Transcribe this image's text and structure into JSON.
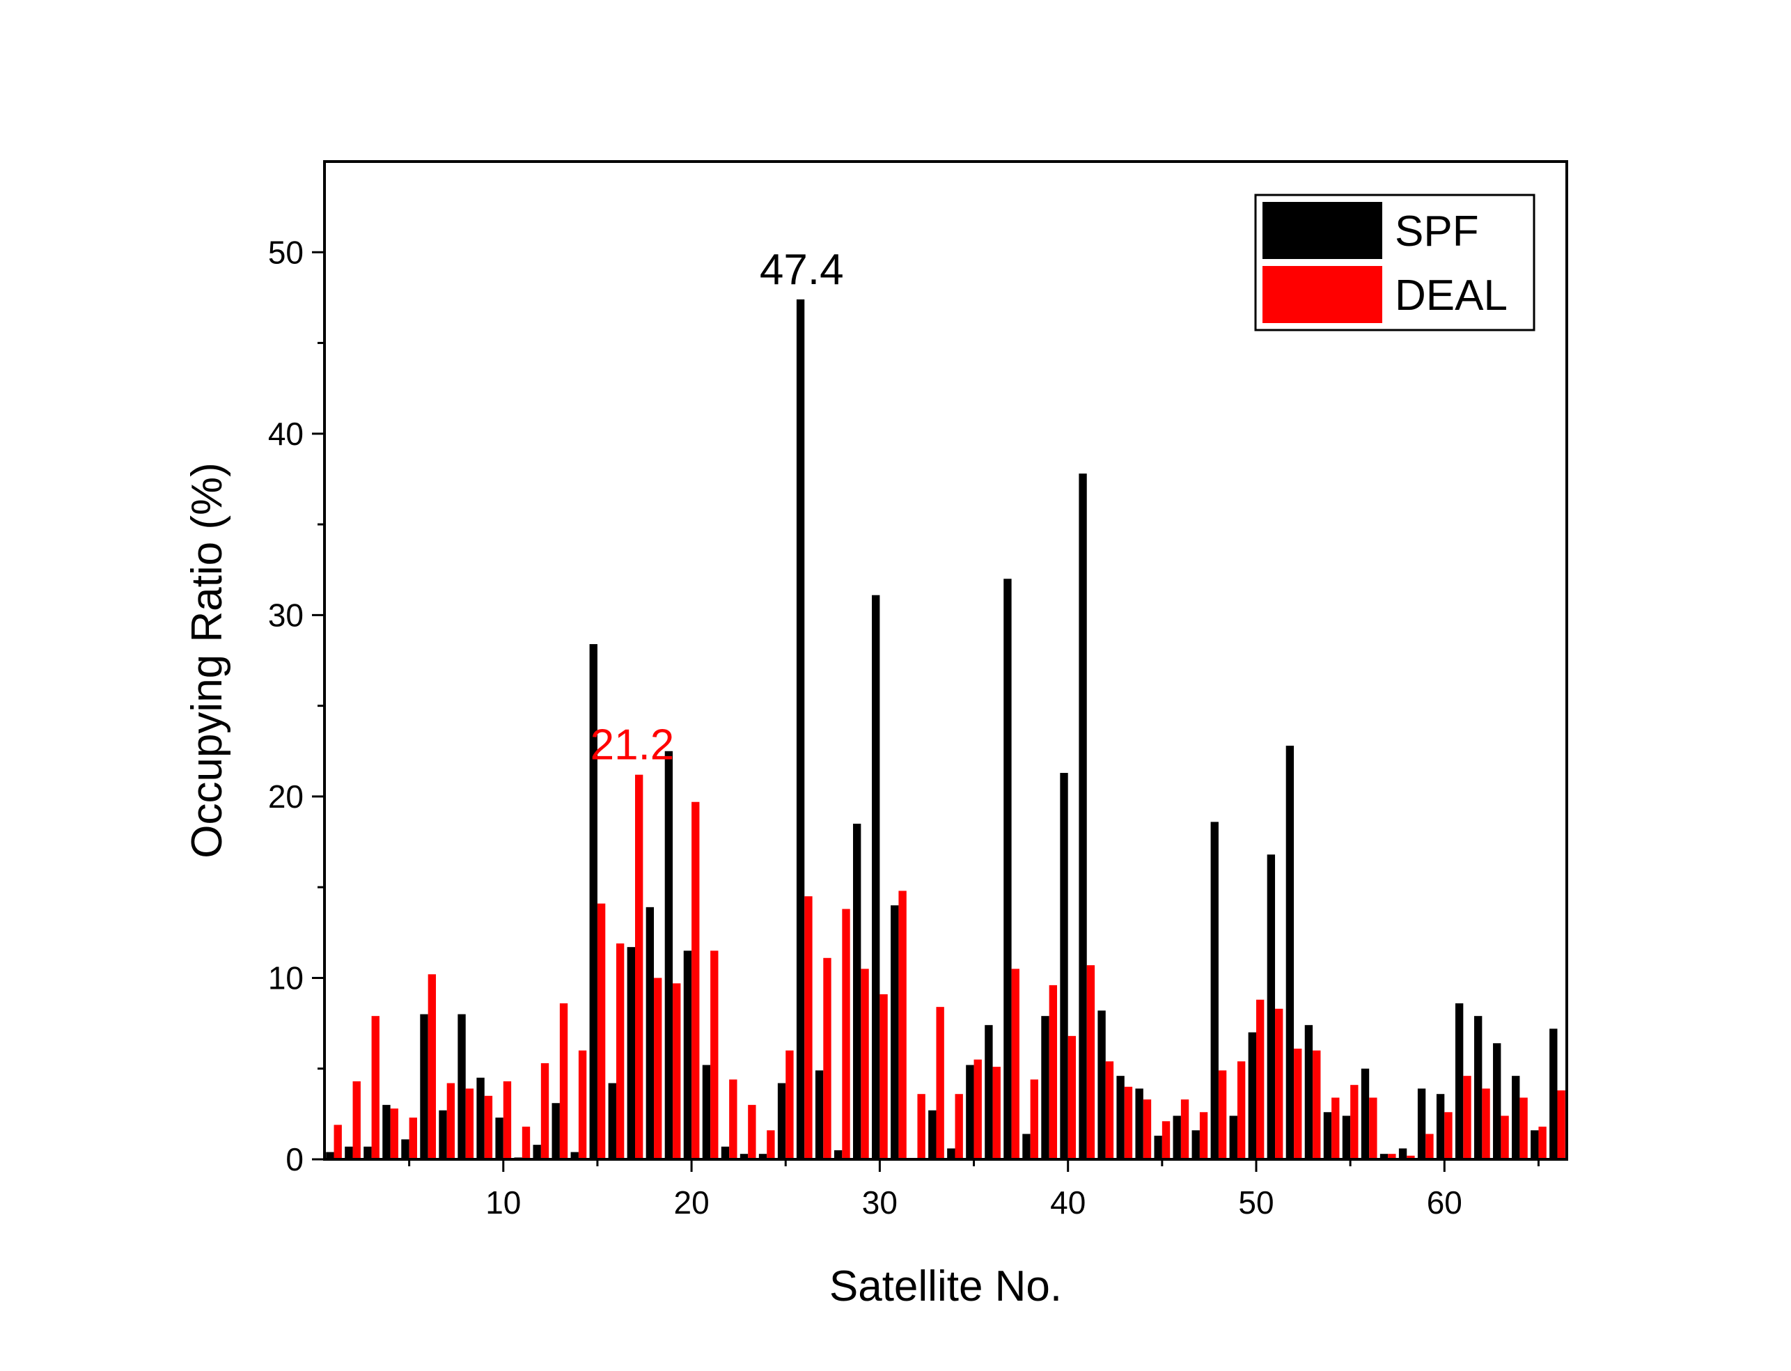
{
  "chart_data": {
    "type": "bar",
    "xlabel": "Satellite No.",
    "ylabel": "Occupying Ratio (%)",
    "xlim": [
      0.5,
      66.5
    ],
    "ylim": [
      0,
      55
    ],
    "x_ticks": [
      10,
      20,
      30,
      40,
      50,
      60
    ],
    "y_ticks": [
      0,
      10,
      20,
      30,
      40,
      50
    ],
    "legend_position": "top-right",
    "grid": false,
    "x": [
      1,
      2,
      3,
      4,
      5,
      6,
      7,
      8,
      9,
      10,
      11,
      12,
      13,
      14,
      15,
      16,
      17,
      18,
      19,
      20,
      21,
      22,
      23,
      24,
      25,
      26,
      27,
      28,
      29,
      30,
      31,
      32,
      33,
      34,
      35,
      36,
      37,
      38,
      39,
      40,
      41,
      42,
      43,
      44,
      45,
      46,
      47,
      48,
      49,
      50,
      51,
      52,
      53,
      54,
      55,
      56,
      57,
      58,
      59,
      60,
      61,
      62,
      63,
      64,
      65,
      66
    ],
    "series": [
      {
        "name": "SPF",
        "color": "#000000",
        "values": [
          0.4,
          0.7,
          0.7,
          3.0,
          1.1,
          8.0,
          2.7,
          8.0,
          4.5,
          2.3,
          0.1,
          0.8,
          3.1,
          0.4,
          28.4,
          4.2,
          11.7,
          13.9,
          22.5,
          11.5,
          5.2,
          0.7,
          0.3,
          0.3,
          4.2,
          47.4,
          4.9,
          0.5,
          18.5,
          31.1,
          14.0,
          0.0,
          2.7,
          0.6,
          5.2,
          7.4,
          32.0,
          1.4,
          7.9,
          21.3,
          37.8,
          8.2,
          4.6,
          3.9,
          1.3,
          2.4,
          1.6,
          18.6,
          2.4,
          7.0,
          16.8,
          22.8,
          7.4,
          2.6,
          2.4,
          5.0,
          0.3,
          0.6,
          3.9,
          3.6,
          8.6,
          7.9,
          6.4,
          4.6,
          1.6,
          7.2
        ]
      },
      {
        "name": "DEAL",
        "color": "#ff0000",
        "values": [
          1.9,
          4.3,
          7.9,
          2.8,
          2.3,
          10.2,
          4.2,
          3.9,
          3.5,
          4.3,
          1.8,
          5.3,
          8.6,
          6.0,
          14.1,
          11.9,
          21.2,
          10.0,
          9.7,
          19.7,
          11.5,
          4.4,
          3.0,
          1.6,
          6.0,
          14.5,
          11.1,
          13.8,
          10.5,
          9.1,
          14.8,
          3.6,
          8.4,
          3.6,
          5.5,
          5.1,
          10.5,
          4.4,
          9.6,
          6.8,
          10.7,
          5.4,
          4.0,
          3.3,
          2.1,
          3.3,
          2.6,
          4.9,
          5.4,
          8.8,
          8.3,
          6.1,
          6.0,
          3.4,
          4.1,
          3.4,
          0.3,
          0.2,
          1.4,
          2.6,
          4.6,
          3.9,
          2.4,
          3.4,
          1.8,
          3.8
        ]
      }
    ],
    "annotations": [
      {
        "text": "47.4",
        "x": 26,
        "y": 47.4,
        "color": "#000000"
      },
      {
        "text": "21.2",
        "x": 17,
        "y": 21.2,
        "color": "#ff0000"
      }
    ]
  }
}
